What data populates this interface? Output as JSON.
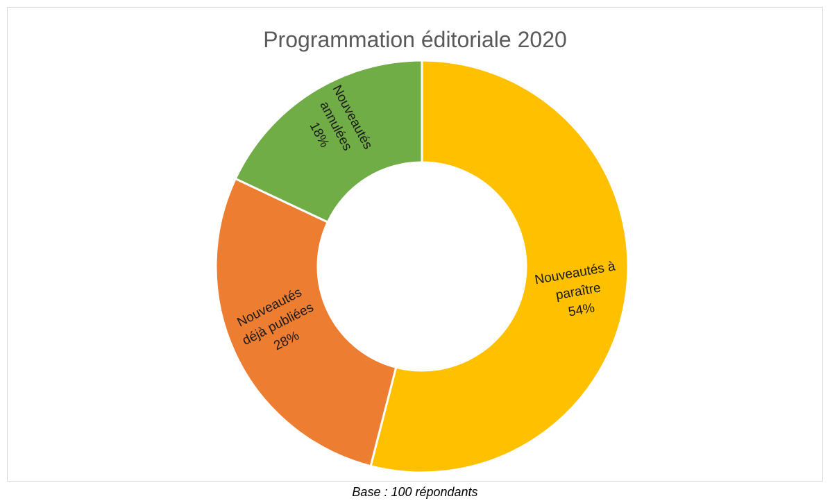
{
  "chart_data": {
    "type": "pie",
    "variant": "donut",
    "title": "Programmation éditoriale 2020",
    "start_angle_deg": 0,
    "direction": "clockwise",
    "slices": [
      {
        "label_lines": [
          "Nouveautés à",
          "paraître"
        ],
        "value": 54,
        "value_label": "54%",
        "color": "#FFC000"
      },
      {
        "label_lines": [
          "Nouveautés",
          "déjà publiées"
        ],
        "value": 28,
        "value_label": "28%",
        "color": "#ED7D31"
      },
      {
        "label_lines": [
          "Nouveautés",
          "annulées"
        ],
        "value": 18,
        "value_label": "18%",
        "color": "#70AD47"
      }
    ],
    "legend": "none"
  },
  "footnote": "Base : 100 répondants"
}
